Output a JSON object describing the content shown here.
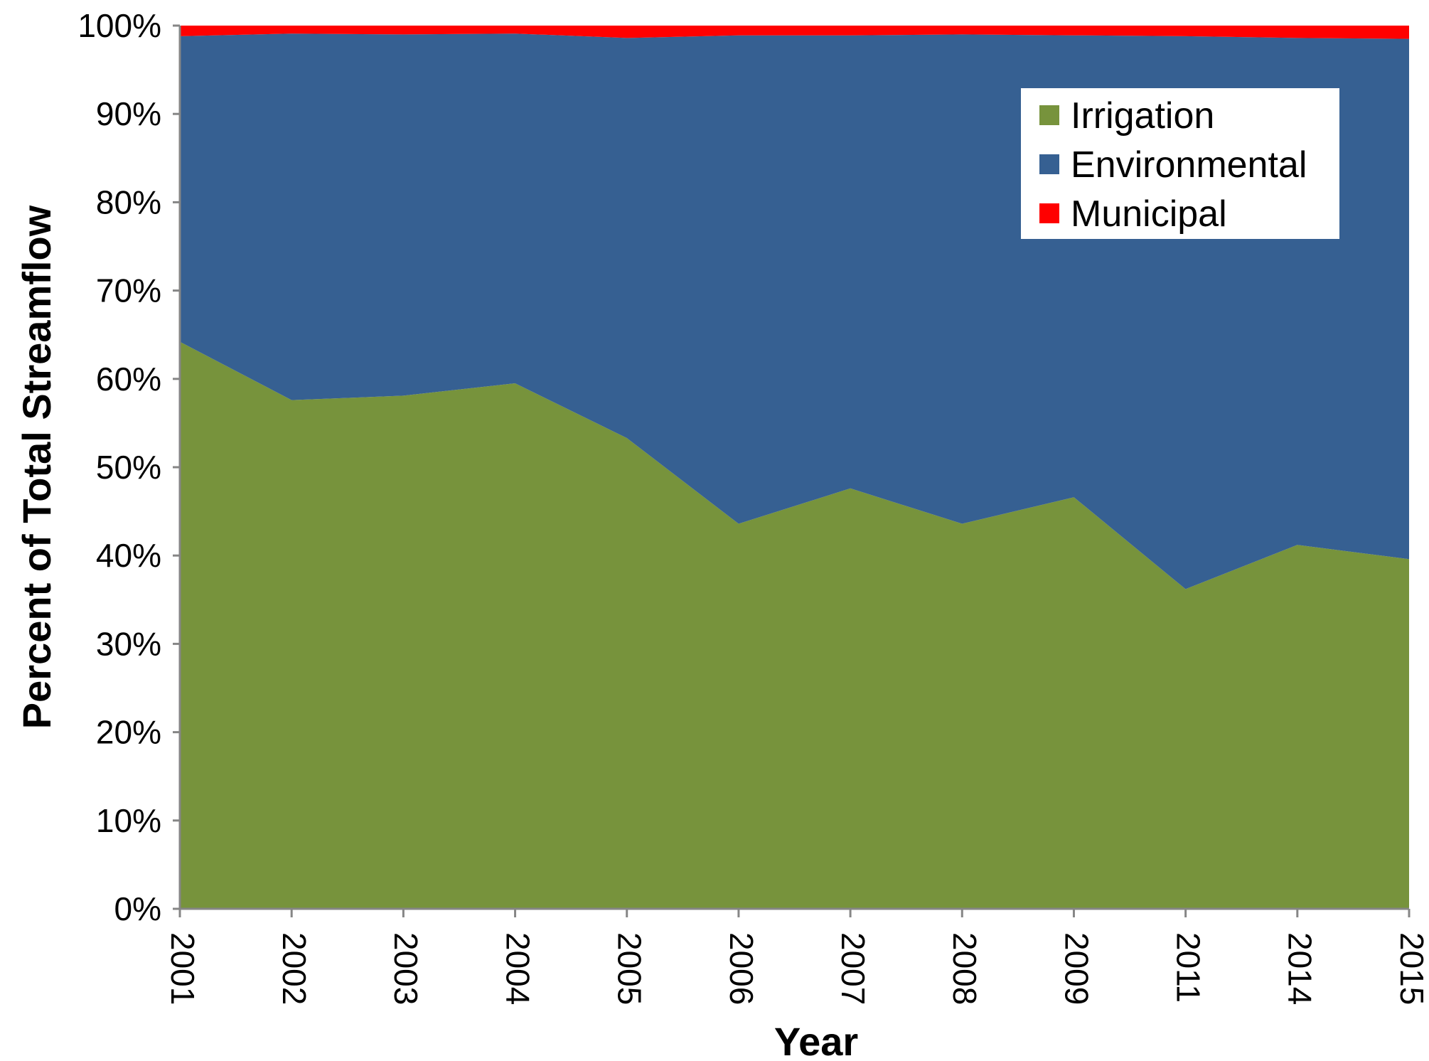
{
  "chart_data": {
    "type": "area",
    "stacked": true,
    "normalized": true,
    "categories": [
      "2001",
      "2002",
      "2003",
      "2004",
      "2005",
      "2006",
      "2007",
      "2008",
      "2009",
      "2011",
      "2014",
      "2015"
    ],
    "series": [
      {
        "name": "Irrigation",
        "color": "#77933C",
        "values": [
          64.2,
          57.6,
          58.1,
          59.5,
          53.3,
          43.6,
          47.6,
          43.6,
          46.6,
          36.2,
          41.2,
          39.6
        ]
      },
      {
        "name": "Environmental",
        "color": "#366092",
        "values": [
          34.6,
          41.5,
          40.9,
          39.6,
          45.3,
          55.3,
          51.3,
          55.4,
          52.3,
          62.6,
          57.4,
          58.9
        ]
      },
      {
        "name": "Municipal",
        "color": "#FF0000",
        "values": [
          1.2,
          0.9,
          1.0,
          0.9,
          1.4,
          1.1,
          1.1,
          1.0,
          1.1,
          1.2,
          1.4,
          1.5
        ]
      }
    ],
    "xlabel": "Year",
    "ylabel": "Percent of Total Streamflow",
    "ylim": [
      0,
      100
    ],
    "yticks": [
      "0%",
      "10%",
      "20%",
      "30%",
      "40%",
      "50%",
      "60%",
      "70%",
      "80%",
      "90%",
      "100%"
    ],
    "grid": false,
    "legend_position": "top-right"
  }
}
